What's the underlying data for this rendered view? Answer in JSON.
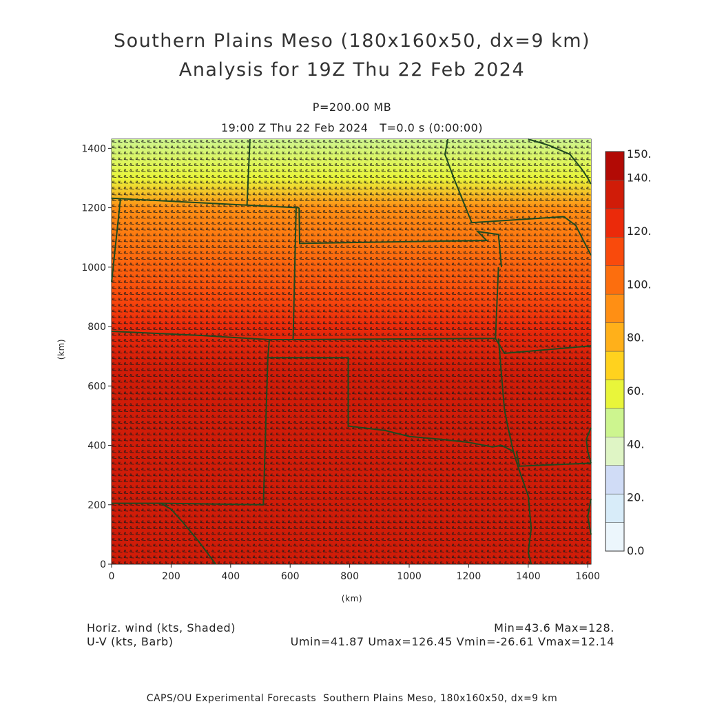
{
  "chart_data": {
    "type": "heatmap",
    "title": "Southern Plains Meso (180x160x50, dx=9 km)",
    "subtitle": "Analysis for 19Z Thu 22 Feb 2024",
    "level_label": "P=200.00 MB",
    "time_label": "19:00 Z Thu 22 Feb 2024   T=0.0 s (0:00:00)",
    "xlabel": "(km)",
    "ylabel": "(km)",
    "xlim": [
      0,
      1611
    ],
    "ylim": [
      0,
      1431
    ],
    "x_ticks": [
      0,
      200,
      400,
      600,
      800,
      1000,
      1200,
      1400,
      1600
    ],
    "y_ticks": [
      0,
      200,
      400,
      600,
      800,
      1000,
      1200,
      1400
    ],
    "x_tick_labels": [
      "0",
      "200",
      "400",
      "600",
      "800",
      "1000",
      "1200",
      "1400",
      "1600"
    ],
    "y_tick_labels": [
      "0",
      "200",
      "400",
      "600",
      "800",
      "1000",
      "1200",
      "1400"
    ],
    "colorbar": {
      "labels": [
        "0.0",
        "20.",
        "40.",
        "60.",
        "80.",
        "100.",
        "120.",
        "140.",
        "150."
      ],
      "levels": [
        0,
        10,
        20,
        30,
        40,
        50,
        60,
        70,
        80,
        90,
        100,
        110,
        120,
        130,
        140,
        150
      ],
      "colors": [
        "#ecf6fc",
        "#d8ecf9",
        "#d0dcf6",
        "#dff5c5",
        "#cdf58f",
        "#e9f53a",
        "#ffd21e",
        "#ffb01a",
        "#ff8f14",
        "#fc6e0e",
        "#f94a0c",
        "#eb2a0a",
        "#d01c08",
        "#b20a05"
      ]
    },
    "wind_speed_profile": [
      {
        "y": 1431,
        "speed": 45
      },
      {
        "y": 1300,
        "speed": 58
      },
      {
        "y": 1200,
        "speed": 80
      },
      {
        "y": 1050,
        "speed": 95
      },
      {
        "y": 900,
        "speed": 105
      },
      {
        "y": 800,
        "speed": 118
      },
      {
        "y": 650,
        "speed": 125
      },
      {
        "y": 0,
        "speed": 127
      }
    ],
    "field_label": "Horiz. wind (kts, Shaded)",
    "vector_label": "U-V (kts, Barb)",
    "stats_line1": "Min=43.6 Max=128.",
    "stats_line2": "Umin=41.87 Umax=126.45 Vmin=-26.61 Vmax=12.14",
    "footer": "CAPS/OU Experimental Forecasts  Southern Plains Meso, 180x160x50, dx=9 km",
    "boundaries": [
      [
        [
          0,
          1232
        ],
        [
          430,
          1210
        ],
        [
          630,
          1200
        ]
      ],
      [
        [
          465,
          1431
        ],
        [
          455,
          1210
        ]
      ],
      [
        [
          630,
          1200
        ],
        [
          632,
          1080
        ],
        [
          1260,
          1090
        ],
        [
          1230,
          1120
        ],
        [
          1300,
          1110
        ],
        [
          1310,
          1000
        ]
      ],
      [
        [
          1130,
          1431
        ],
        [
          1120,
          1380
        ],
        [
          1150,
          1300
        ],
        [
          1210,
          1150
        ],
        [
          1370,
          1160
        ],
        [
          1520,
          1170
        ],
        [
          1560,
          1140
        ],
        [
          1580,
          1100
        ],
        [
          1611,
          1040
        ]
      ],
      [
        [
          1400,
          1431
        ],
        [
          1470,
          1410
        ],
        [
          1540,
          1380
        ],
        [
          1580,
          1330
        ],
        [
          1600,
          1300
        ],
        [
          1611,
          1280
        ]
      ],
      [
        [
          30,
          1232
        ],
        [
          0,
          950
        ]
      ],
      [
        [
          0,
          784
        ],
        [
          300,
          770
        ],
        [
          530,
          756
        ],
        [
          610,
          756
        ],
        [
          620,
          1200
        ]
      ],
      [
        [
          615,
          756
        ],
        [
          1290,
          760
        ],
        [
          1300,
          1000
        ]
      ],
      [
        [
          1290,
          760
        ],
        [
          1320,
          710
        ],
        [
          1611,
          735
        ]
      ],
      [
        [
          530,
          756
        ],
        [
          525,
          695
        ],
        [
          795,
          695
        ],
        [
          795,
          465
        ],
        [
          920,
          450
        ],
        [
          1000,
          430
        ],
        [
          1110,
          420
        ],
        [
          1200,
          410
        ],
        [
          1280,
          395
        ],
        [
          1310,
          400
        ],
        [
          1350,
          380
        ]
      ],
      [
        [
          525,
          695
        ],
        [
          510,
          200
        ],
        [
          165,
          205
        ],
        [
          0,
          205
        ]
      ],
      [
        [
          165,
          205
        ],
        [
          200,
          185
        ],
        [
          240,
          140
        ],
        [
          290,
          80
        ],
        [
          350,
          0
        ]
      ],
      [
        [
          1300,
          760
        ],
        [
          1320,
          520
        ],
        [
          1330,
          470
        ],
        [
          1350,
          380
        ],
        [
          1365,
          330
        ],
        [
          1400,
          230
        ],
        [
          1410,
          120
        ],
        [
          1400,
          40
        ],
        [
          1410,
          0
        ]
      ],
      [
        [
          1360,
          380
        ],
        [
          1370,
          330
        ],
        [
          1611,
          340
        ]
      ],
      [
        [
          1611,
          460
        ],
        [
          1595,
          420
        ],
        [
          1600,
          380
        ],
        [
          1611,
          340
        ]
      ],
      [
        [
          1611,
          220
        ],
        [
          1600,
          160
        ],
        [
          1611,
          100
        ]
      ]
    ]
  }
}
